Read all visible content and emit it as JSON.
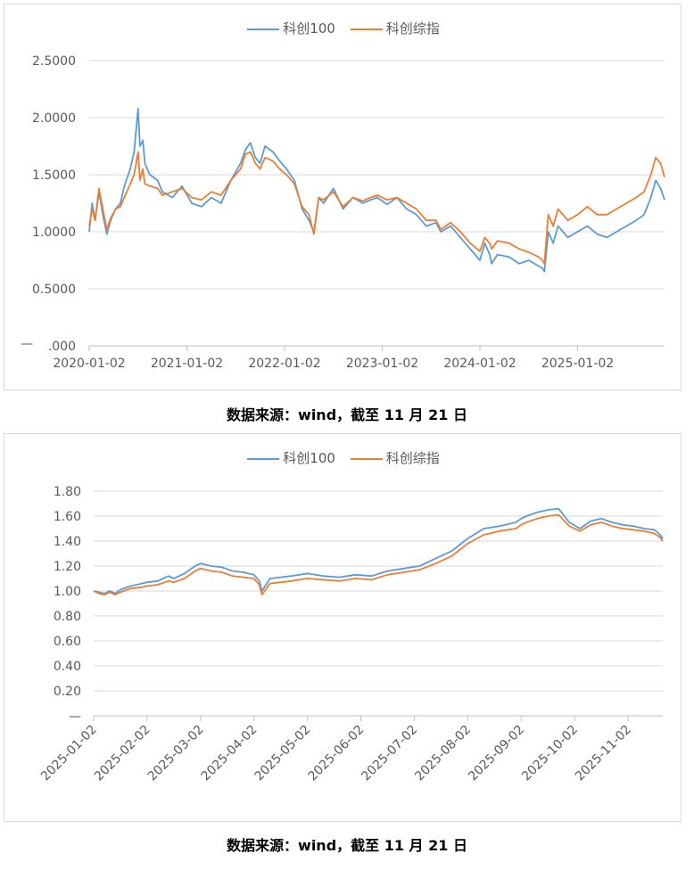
{
  "colors": {
    "kc100": "#5B9BD5",
    "kczz": "#ED7D31",
    "grid": "#d9d9d9",
    "axis": "#bfbfbf"
  },
  "caption1": "数据来源：wind，截至 11 月 21 日",
  "caption2": "数据来源：wind，截至 11 月 21 日",
  "chart_data": [
    {
      "type": "line",
      "title": "",
      "legend_position": "top-center",
      "grid": "horizontal",
      "x_ticks": [
        "2020-01-02",
        "2021-01-02",
        "2022-01-02",
        "2023-01-02",
        "2024-01-02",
        "2025-01-02"
      ],
      "x_range": [
        2020.0,
        2025.89
      ],
      "y_ticks": [
        "2.5000",
        "2.0000",
        "1.5000",
        "1.0000",
        "0.5000",
        ".000"
      ],
      "y_tick_values": [
        2.5,
        2.0,
        1.5,
        1.0,
        0.5,
        0.0
      ],
      "y_zero_dash": "—",
      "ylim": [
        0,
        2.5
      ],
      "series": [
        {
          "name": "科创100",
          "color": "#5B9BD5",
          "x": [
            2020.0,
            2020.03,
            2020.06,
            2020.1,
            2020.14,
            2020.18,
            2020.22,
            2020.27,
            2020.32,
            2020.36,
            2020.42,
            2020.46,
            2020.5,
            2020.52,
            2020.55,
            2020.57,
            2020.62,
            2020.7,
            2020.75,
            2020.85,
            2020.95,
            2021.05,
            2021.15,
            2021.25,
            2021.35,
            2021.45,
            2021.55,
            2021.6,
            2021.65,
            2021.7,
            2021.75,
            2021.8,
            2021.88,
            2021.95,
            2022.02,
            2022.1,
            2022.18,
            2022.25,
            2022.3,
            2022.35,
            2022.4,
            2022.5,
            2022.6,
            2022.7,
            2022.8,
            2022.88,
            2022.95,
            2023.05,
            2023.15,
            2023.25,
            2023.35,
            2023.45,
            2023.55,
            2023.6,
            2023.7,
            2023.8,
            2023.9,
            2024.0,
            2024.05,
            2024.1,
            2024.12,
            2024.18,
            2024.3,
            2024.4,
            2024.5,
            2024.6,
            2024.64,
            2024.66,
            2024.7,
            2024.75,
            2024.8,
            2024.9,
            2025.0,
            2025.1,
            2025.2,
            2025.3,
            2025.4,
            2025.5,
            2025.6,
            2025.68,
            2025.75,
            2025.8,
            2025.85,
            2025.89
          ],
          "y": [
            1.0,
            1.25,
            1.1,
            1.35,
            1.15,
            0.98,
            1.1,
            1.2,
            1.25,
            1.4,
            1.55,
            1.7,
            2.08,
            1.75,
            1.8,
            1.6,
            1.5,
            1.45,
            1.35,
            1.3,
            1.4,
            1.25,
            1.22,
            1.3,
            1.25,
            1.45,
            1.6,
            1.72,
            1.78,
            1.65,
            1.6,
            1.75,
            1.7,
            1.62,
            1.55,
            1.45,
            1.2,
            1.1,
            1.0,
            1.3,
            1.25,
            1.38,
            1.2,
            1.3,
            1.25,
            1.28,
            1.3,
            1.24,
            1.3,
            1.2,
            1.15,
            1.05,
            1.08,
            1.0,
            1.05,
            0.95,
            0.85,
            0.75,
            0.9,
            0.8,
            0.72,
            0.8,
            0.78,
            0.72,
            0.75,
            0.7,
            0.68,
            0.65,
            1.0,
            0.9,
            1.05,
            0.95,
            1.0,
            1.05,
            0.98,
            0.95,
            1.0,
            1.05,
            1.1,
            1.15,
            1.3,
            1.45,
            1.38,
            1.28
          ]
        },
        {
          "name": "科创综指",
          "color": "#ED7D31",
          "x": [
            2020.0,
            2020.03,
            2020.06,
            2020.1,
            2020.14,
            2020.18,
            2020.22,
            2020.27,
            2020.32,
            2020.36,
            2020.42,
            2020.46,
            2020.5,
            2020.52,
            2020.55,
            2020.57,
            2020.62,
            2020.7,
            2020.75,
            2020.85,
            2020.95,
            2021.05,
            2021.15,
            2021.25,
            2021.35,
            2021.45,
            2021.55,
            2021.6,
            2021.65,
            2021.7,
            2021.75,
            2021.8,
            2021.88,
            2021.95,
            2022.02,
            2022.1,
            2022.18,
            2022.25,
            2022.3,
            2022.35,
            2022.4,
            2022.5,
            2022.6,
            2022.7,
            2022.8,
            2022.88,
            2022.95,
            2023.05,
            2023.15,
            2023.25,
            2023.35,
            2023.45,
            2023.55,
            2023.6,
            2023.7,
            2023.8,
            2023.9,
            2024.0,
            2024.05,
            2024.1,
            2024.12,
            2024.18,
            2024.3,
            2024.4,
            2024.5,
            2024.6,
            2024.64,
            2024.66,
            2024.7,
            2024.75,
            2024.8,
            2024.9,
            2025.0,
            2025.1,
            2025.2,
            2025.3,
            2025.4,
            2025.5,
            2025.6,
            2025.68,
            2025.75,
            2025.8,
            2025.85,
            2025.89
          ],
          "y": [
            1.05,
            1.2,
            1.1,
            1.38,
            1.2,
            1.02,
            1.12,
            1.2,
            1.22,
            1.3,
            1.42,
            1.5,
            1.7,
            1.45,
            1.55,
            1.42,
            1.4,
            1.38,
            1.32,
            1.35,
            1.38,
            1.3,
            1.28,
            1.35,
            1.32,
            1.45,
            1.55,
            1.68,
            1.7,
            1.6,
            1.55,
            1.65,
            1.62,
            1.55,
            1.5,
            1.42,
            1.22,
            1.15,
            0.98,
            1.3,
            1.28,
            1.35,
            1.22,
            1.3,
            1.27,
            1.3,
            1.32,
            1.28,
            1.3,
            1.25,
            1.2,
            1.1,
            1.1,
            1.02,
            1.08,
            1.0,
            0.9,
            0.83,
            0.95,
            0.9,
            0.85,
            0.92,
            0.9,
            0.85,
            0.82,
            0.78,
            0.75,
            0.72,
            1.15,
            1.05,
            1.2,
            1.1,
            1.15,
            1.22,
            1.15,
            1.15,
            1.2,
            1.25,
            1.3,
            1.35,
            1.5,
            1.65,
            1.6,
            1.48
          ]
        }
      ]
    },
    {
      "type": "line",
      "title": "",
      "legend_position": "top-center",
      "grid": "horizontal",
      "x_ticks": [
        "2025-01-02",
        "2025-02-02",
        "2025-03-02",
        "2025-04-02",
        "2025-05-02",
        "2025-06-02",
        "2025-07-02",
        "2025-08-02",
        "2025-09-02",
        "2025-10-02",
        "2025-11-02"
      ],
      "x_range": [
        0,
        10.65
      ],
      "y_ticks": [
        "1.80",
        "1.60",
        "1.40",
        "1.20",
        "1.00",
        "0.80",
        "0.60",
        "0.40",
        "0.20",
        "—"
      ],
      "y_tick_values": [
        1.8,
        1.6,
        1.4,
        1.2,
        1.0,
        0.8,
        0.6,
        0.4,
        0.2,
        0.0
      ],
      "ylim": [
        0,
        1.8
      ],
      "series": [
        {
          "name": "科创100",
          "color": "#5B9BD5",
          "x": [
            0,
            0.1,
            0.2,
            0.3,
            0.4,
            0.5,
            0.7,
            0.9,
            1.0,
            1.2,
            1.4,
            1.5,
            1.7,
            1.9,
            2.0,
            2.2,
            2.4,
            2.6,
            2.8,
            3.0,
            3.1,
            3.15,
            3.3,
            3.5,
            3.7,
            4.0,
            4.3,
            4.6,
            4.9,
            5.2,
            5.5,
            5.8,
            6.1,
            6.4,
            6.7,
            7.0,
            7.3,
            7.6,
            7.9,
            8.0,
            8.1,
            8.3,
            8.5,
            8.7,
            8.9,
            9.1,
            9.3,
            9.5,
            9.7,
            9.9,
            10.1,
            10.3,
            10.5,
            10.6,
            10.65
          ],
          "y": [
            1.0,
            0.99,
            0.98,
            1.0,
            0.98,
            1.01,
            1.04,
            1.06,
            1.07,
            1.08,
            1.12,
            1.1,
            1.14,
            1.2,
            1.22,
            1.2,
            1.19,
            1.16,
            1.15,
            1.13,
            1.08,
            1.0,
            1.1,
            1.11,
            1.12,
            1.14,
            1.12,
            1.11,
            1.13,
            1.12,
            1.16,
            1.18,
            1.2,
            1.26,
            1.32,
            1.42,
            1.5,
            1.52,
            1.55,
            1.58,
            1.6,
            1.63,
            1.65,
            1.66,
            1.55,
            1.5,
            1.56,
            1.58,
            1.55,
            1.53,
            1.52,
            1.5,
            1.49,
            1.45,
            1.42
          ]
        },
        {
          "name": "科创综指",
          "color": "#ED7D31",
          "x": [
            0,
            0.1,
            0.2,
            0.3,
            0.4,
            0.5,
            0.7,
            0.9,
            1.0,
            1.2,
            1.4,
            1.5,
            1.7,
            1.9,
            2.0,
            2.2,
            2.4,
            2.6,
            2.8,
            3.0,
            3.1,
            3.15,
            3.3,
            3.5,
            3.7,
            4.0,
            4.3,
            4.6,
            4.9,
            5.2,
            5.5,
            5.8,
            6.1,
            6.4,
            6.7,
            7.0,
            7.3,
            7.6,
            7.9,
            8.0,
            8.1,
            8.3,
            8.5,
            8.7,
            8.9,
            9.1,
            9.3,
            9.5,
            9.7,
            9.9,
            10.1,
            10.3,
            10.5,
            10.6,
            10.65
          ],
          "y": [
            1.0,
            0.98,
            0.97,
            0.99,
            0.97,
            0.99,
            1.02,
            1.03,
            1.04,
            1.05,
            1.08,
            1.07,
            1.1,
            1.16,
            1.18,
            1.16,
            1.15,
            1.12,
            1.11,
            1.1,
            1.05,
            0.97,
            1.06,
            1.07,
            1.08,
            1.1,
            1.09,
            1.08,
            1.1,
            1.09,
            1.13,
            1.15,
            1.17,
            1.22,
            1.28,
            1.38,
            1.45,
            1.48,
            1.5,
            1.53,
            1.55,
            1.58,
            1.6,
            1.61,
            1.52,
            1.48,
            1.53,
            1.55,
            1.52,
            1.5,
            1.49,
            1.48,
            1.46,
            1.43,
            1.4
          ]
        }
      ]
    }
  ]
}
